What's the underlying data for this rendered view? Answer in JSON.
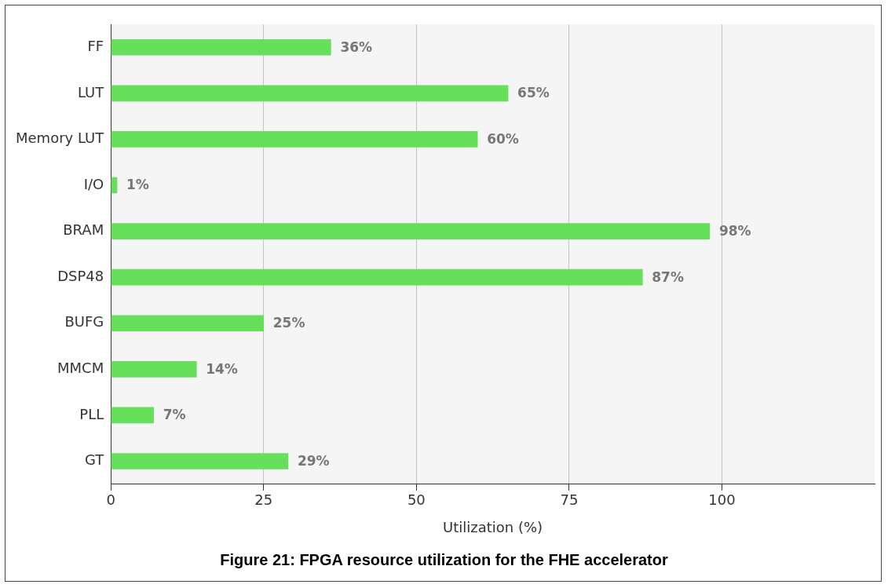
{
  "chart_data": {
    "type": "bar",
    "orientation": "horizontal",
    "title": "Figure 21: FPGA resource utilization for the FHE accelerator",
    "xlabel": "Utilization (%)",
    "categories": [
      "FF",
      "LUT",
      "Memory LUT",
      "I/O",
      "BRAM",
      "DSP48",
      "BUFG",
      "MMCM",
      "PLL",
      "GT"
    ],
    "values": [
      36,
      65,
      60,
      1,
      98,
      87,
      25,
      14,
      7,
      29
    ],
    "value_labels": [
      "36%",
      "65%",
      "60%",
      "1%",
      "98%",
      "87%",
      "25%",
      "14%",
      "7%",
      "29%"
    ],
    "color": "#66e05a",
    "xlim": [
      0,
      125
    ],
    "xticks": [
      0,
      25,
      50,
      75,
      100
    ],
    "grid": "x",
    "legend": false
  }
}
